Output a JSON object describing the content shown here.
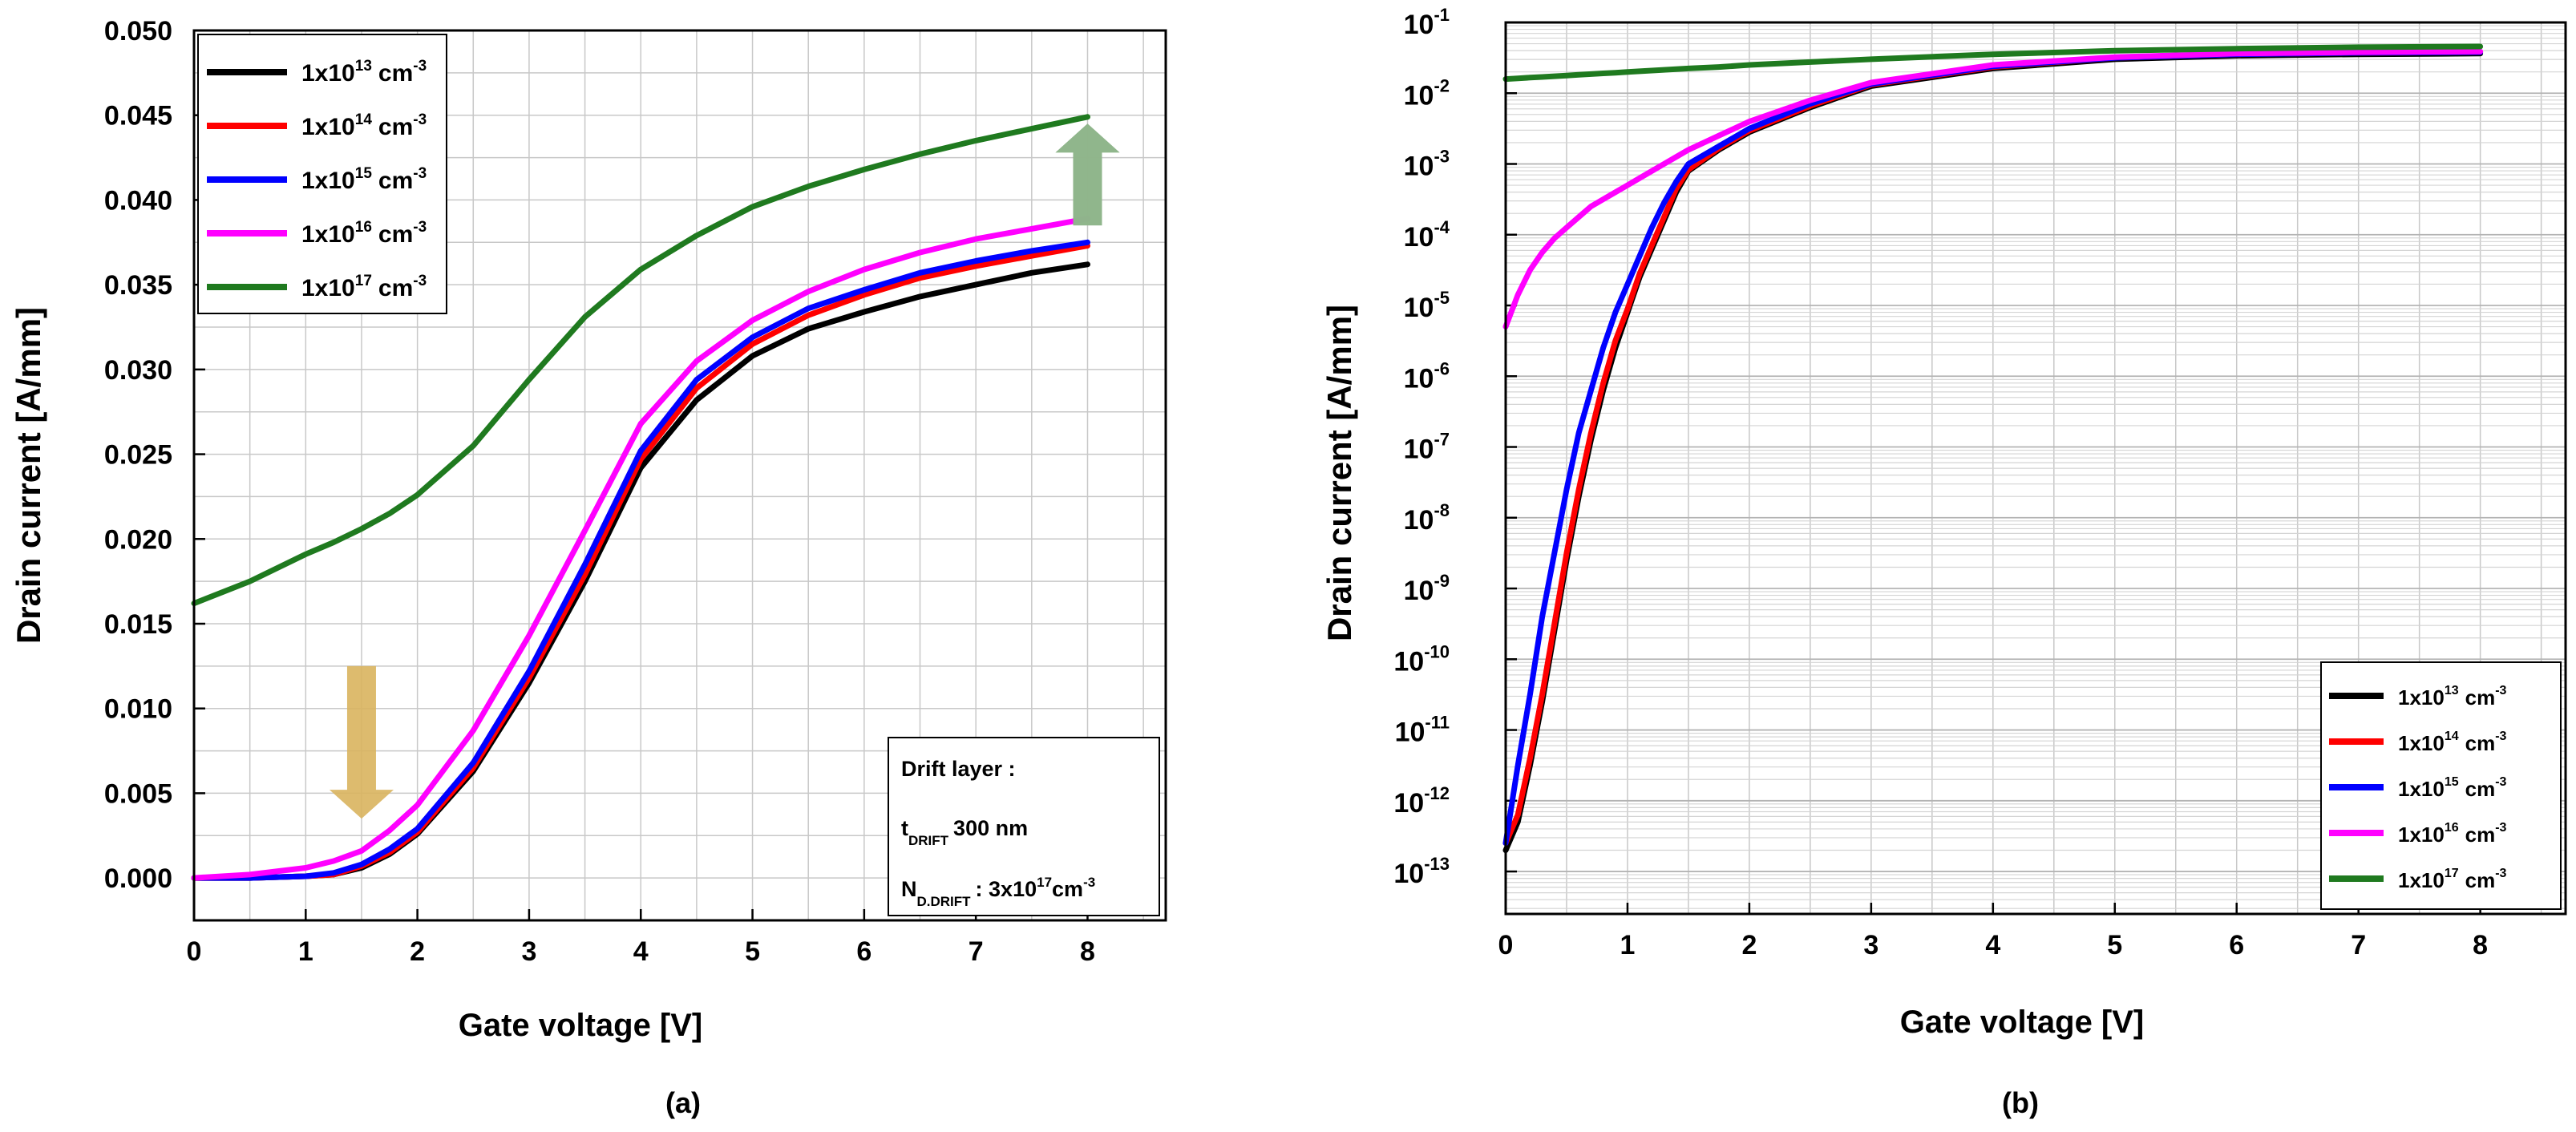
{
  "figure": {
    "colors": {
      "1e13": "#000000",
      "1e14": "#ff0000",
      "1e15": "#0000ff",
      "1e16": "#ff00ff",
      "1e17": "#1f7a1f",
      "arrow_down": "#d9b45e",
      "arrow_up": "#8fb58b"
    }
  },
  "chart_data": [
    {
      "type": "line",
      "caption": "(a)",
      "title": "",
      "xlabel": "Gate voltage [V]",
      "ylabel": "Drain current [A/mm]",
      "xlim": [
        0,
        8.7
      ],
      "ylim": [
        -0.0025,
        0.05
      ],
      "xticks": [
        0,
        1,
        2,
        3,
        4,
        5,
        6,
        7,
        8
      ],
      "yticks": [
        0.0,
        0.005,
        0.01,
        0.015,
        0.02,
        0.025,
        0.03,
        0.035,
        0.04,
        0.045,
        0.05
      ],
      "xtick_labels": [
        "0",
        "1",
        "2",
        "3",
        "4",
        "5",
        "6",
        "7",
        "8"
      ],
      "ytick_labels": [
        "0.000",
        "0.005",
        "0.010",
        "0.015",
        "0.020",
        "0.025",
        "0.030",
        "0.035",
        "0.040",
        "0.045",
        "0.050"
      ],
      "grid": true,
      "legend_position": "top-left",
      "x": [
        0,
        0.5,
        1,
        1.25,
        1.5,
        1.75,
        2,
        2.5,
        3,
        3.5,
        4,
        4.5,
        5,
        5.5,
        6,
        6.5,
        7,
        7.5,
        8
      ],
      "series": [
        {
          "name": "1x10^13 cm^-3",
          "label_base": "1x10",
          "label_exp": "13",
          "label_unit": "cm",
          "label_unit_exp": "-3",
          "color_key": "1e13",
          "values": [
            0.0,
            0.0,
            0.0001,
            0.0002,
            0.0006,
            0.0014,
            0.0026,
            0.0063,
            0.0115,
            0.0175,
            0.0242,
            0.0282,
            0.0308,
            0.0324,
            0.0334,
            0.0343,
            0.035,
            0.0357,
            0.0362
          ]
        },
        {
          "name": "1x10^14 cm^-3",
          "label_base": "1x10",
          "label_exp": "14",
          "label_unit": "cm",
          "label_unit_exp": "-3",
          "color_key": "1e14",
          "values": [
            0.0,
            0.0,
            0.0001,
            0.0002,
            0.0007,
            0.0015,
            0.0027,
            0.0065,
            0.0118,
            0.0179,
            0.0247,
            0.0289,
            0.0315,
            0.0332,
            0.0344,
            0.0354,
            0.0361,
            0.0367,
            0.0373
          ]
        },
        {
          "name": "1x10^15 cm^-3",
          "label_base": "1x10",
          "label_exp": "15",
          "label_unit": "cm",
          "label_unit_exp": "-3",
          "color_key": "1e15",
          "values": [
            0.0,
            0.0,
            0.0001,
            0.0003,
            0.0008,
            0.0017,
            0.0029,
            0.0068,
            0.0122,
            0.0185,
            0.0252,
            0.0294,
            0.0319,
            0.0336,
            0.0347,
            0.0357,
            0.0364,
            0.037,
            0.0375
          ]
        },
        {
          "name": "1x10^16 cm^-3",
          "label_base": "1x10",
          "label_exp": "16",
          "label_unit": "cm",
          "label_unit_exp": "-3",
          "color_key": "1e16",
          "values": [
            0.0,
            0.0002,
            0.0006,
            0.001,
            0.0016,
            0.0028,
            0.0043,
            0.0087,
            0.0143,
            0.0205,
            0.0268,
            0.0305,
            0.0329,
            0.0346,
            0.0359,
            0.0369,
            0.0377,
            0.0383,
            0.0389
          ]
        },
        {
          "name": "1x10^17 cm^-3",
          "label_base": "1x10",
          "label_exp": "17",
          "label_unit": "cm",
          "label_unit_exp": "-3",
          "color_key": "1e17",
          "values": [
            0.0162,
            0.0175,
            0.0191,
            0.0198,
            0.0206,
            0.0215,
            0.0226,
            0.0255,
            0.0294,
            0.0331,
            0.0359,
            0.0379,
            0.0396,
            0.0408,
            0.0418,
            0.0427,
            0.0435,
            0.0442,
            0.0449
          ]
        }
      ],
      "annotations": {
        "box_title": "Drift layer :",
        "t_main": "t",
        "t_sub": "DRIFT",
        "t_value": "300 nm",
        "n_main": "N",
        "n_sub": "D.DRIFT",
        "n_value_base": ": 3x10",
        "n_value_exp": "17",
        "n_value_unit": "cm",
        "n_value_unit_exp": "-3",
        "arrow_down_at": {
          "x": 1.5,
          "y_top": 0.0125,
          "y_bottom": 0.0035
        },
        "arrow_up_at": {
          "x": 8.0,
          "y_top": 0.0445,
          "y_bottom": 0.0385
        }
      }
    },
    {
      "type": "line",
      "caption": "(b)",
      "title": "",
      "xlabel": "Gate voltage [V]",
      "ylabel": "Drain current [A/mm]",
      "yscale": "log",
      "xlim": [
        0,
        8.7
      ],
      "ylim_exp": [
        -13.6,
        -1
      ],
      "xticks": [
        0,
        1,
        2,
        3,
        4,
        5,
        6,
        7,
        8
      ],
      "xtick_labels": [
        "0",
        "1",
        "2",
        "3",
        "4",
        "5",
        "6",
        "7",
        "8"
      ],
      "ytick_exponents": [
        -1,
        -2,
        -3,
        -4,
        -5,
        -6,
        -7,
        -8,
        -9,
        -10,
        -11,
        -12,
        -13
      ],
      "ytick_labels": [
        {
          "base": "10",
          "exp": "-1"
        },
        {
          "base": "10",
          "exp": "-2"
        },
        {
          "base": "10",
          "exp": "-3"
        },
        {
          "base": "10",
          "exp": "-4"
        },
        {
          "base": "10",
          "exp": "-5"
        },
        {
          "base": "10",
          "exp": "-6"
        },
        {
          "base": "10",
          "exp": "-7"
        },
        {
          "base": "10",
          "exp": "-8"
        },
        {
          "base": "10",
          "exp": "-9"
        },
        {
          "base": "10",
          "exp": "-10"
        },
        {
          "base": "10",
          "exp": "-11"
        },
        {
          "base": "10",
          "exp": "-12"
        },
        {
          "base": "10",
          "exp": "-13"
        }
      ],
      "grid": true,
      "legend_position": "bottom-right",
      "x": [
        0,
        0.1,
        0.2,
        0.3,
        0.4,
        0.5,
        0.6,
        0.7,
        0.8,
        0.9,
        1.0,
        1.1,
        1.2,
        1.3,
        1.4,
        1.5,
        1.75,
        2.0,
        2.5,
        3.0,
        4.0,
        5.0,
        6.0,
        7.0,
        8.0
      ],
      "series": [
        {
          "name": "1x10^13 cm^-3",
          "label_base": "1x10",
          "label_exp": "13",
          "label_unit": "cm",
          "label_unit_exp": "-3",
          "color_key": "1e13",
          "log10_values": [
            -12.7,
            -12.3,
            -11.5,
            -10.6,
            -9.6,
            -8.6,
            -7.7,
            -6.9,
            -6.2,
            -5.6,
            -5.1,
            -4.6,
            -4.2,
            -3.8,
            -3.4,
            -3.1,
            -2.8,
            -2.55,
            -2.2,
            -1.9,
            -1.65,
            -1.52,
            -1.47,
            -1.45,
            -1.44
          ]
        },
        {
          "name": "1x10^14 cm^-3",
          "label_base": "1x10",
          "label_exp": "14",
          "label_unit": "cm",
          "label_unit_exp": "-3",
          "color_key": "1e14",
          "log10_values": [
            -12.6,
            -12.2,
            -11.4,
            -10.5,
            -9.5,
            -8.5,
            -7.6,
            -6.8,
            -6.1,
            -5.5,
            -5.05,
            -4.55,
            -4.15,
            -3.75,
            -3.35,
            -3.08,
            -2.78,
            -2.53,
            -2.18,
            -1.88,
            -1.63,
            -1.5,
            -1.45,
            -1.43,
            -1.42
          ]
        },
        {
          "name": "1x10^15 cm^-3",
          "label_base": "1x10",
          "label_exp": "15",
          "label_unit": "cm",
          "label_unit_exp": "-3",
          "color_key": "1e15",
          "log10_values": [
            -12.6,
            -11.5,
            -10.5,
            -9.4,
            -8.5,
            -7.6,
            -6.8,
            -6.2,
            -5.6,
            -5.1,
            -4.7,
            -4.3,
            -3.9,
            -3.55,
            -3.25,
            -3.0,
            -2.75,
            -2.5,
            -2.15,
            -1.87,
            -1.62,
            -1.5,
            -1.45,
            -1.43,
            -1.42
          ]
        },
        {
          "name": "1x10^16 cm^-3",
          "label_base": "1x10",
          "label_exp": "16",
          "label_unit": "cm",
          "label_unit_exp": "-3",
          "color_key": "1e16",
          "log10_values": [
            -5.3,
            -4.85,
            -4.5,
            -4.25,
            -4.05,
            -3.9,
            -3.75,
            -3.6,
            -3.5,
            -3.4,
            -3.3,
            -3.2,
            -3.1,
            -3.0,
            -2.9,
            -2.8,
            -2.6,
            -2.4,
            -2.1,
            -1.85,
            -1.6,
            -1.49,
            -1.44,
            -1.42,
            -1.41
          ]
        },
        {
          "name": "1x10^17 cm^-3",
          "label_base": "1x10",
          "label_exp": "17",
          "label_unit": "cm",
          "label_unit_exp": "-3",
          "color_key": "1e17",
          "log10_values": [
            -1.8,
            -1.79,
            -1.78,
            -1.77,
            -1.76,
            -1.75,
            -1.74,
            -1.73,
            -1.72,
            -1.71,
            -1.7,
            -1.69,
            -1.68,
            -1.67,
            -1.66,
            -1.65,
            -1.63,
            -1.6,
            -1.56,
            -1.52,
            -1.45,
            -1.4,
            -1.37,
            -1.35,
            -1.34
          ]
        }
      ]
    }
  ]
}
